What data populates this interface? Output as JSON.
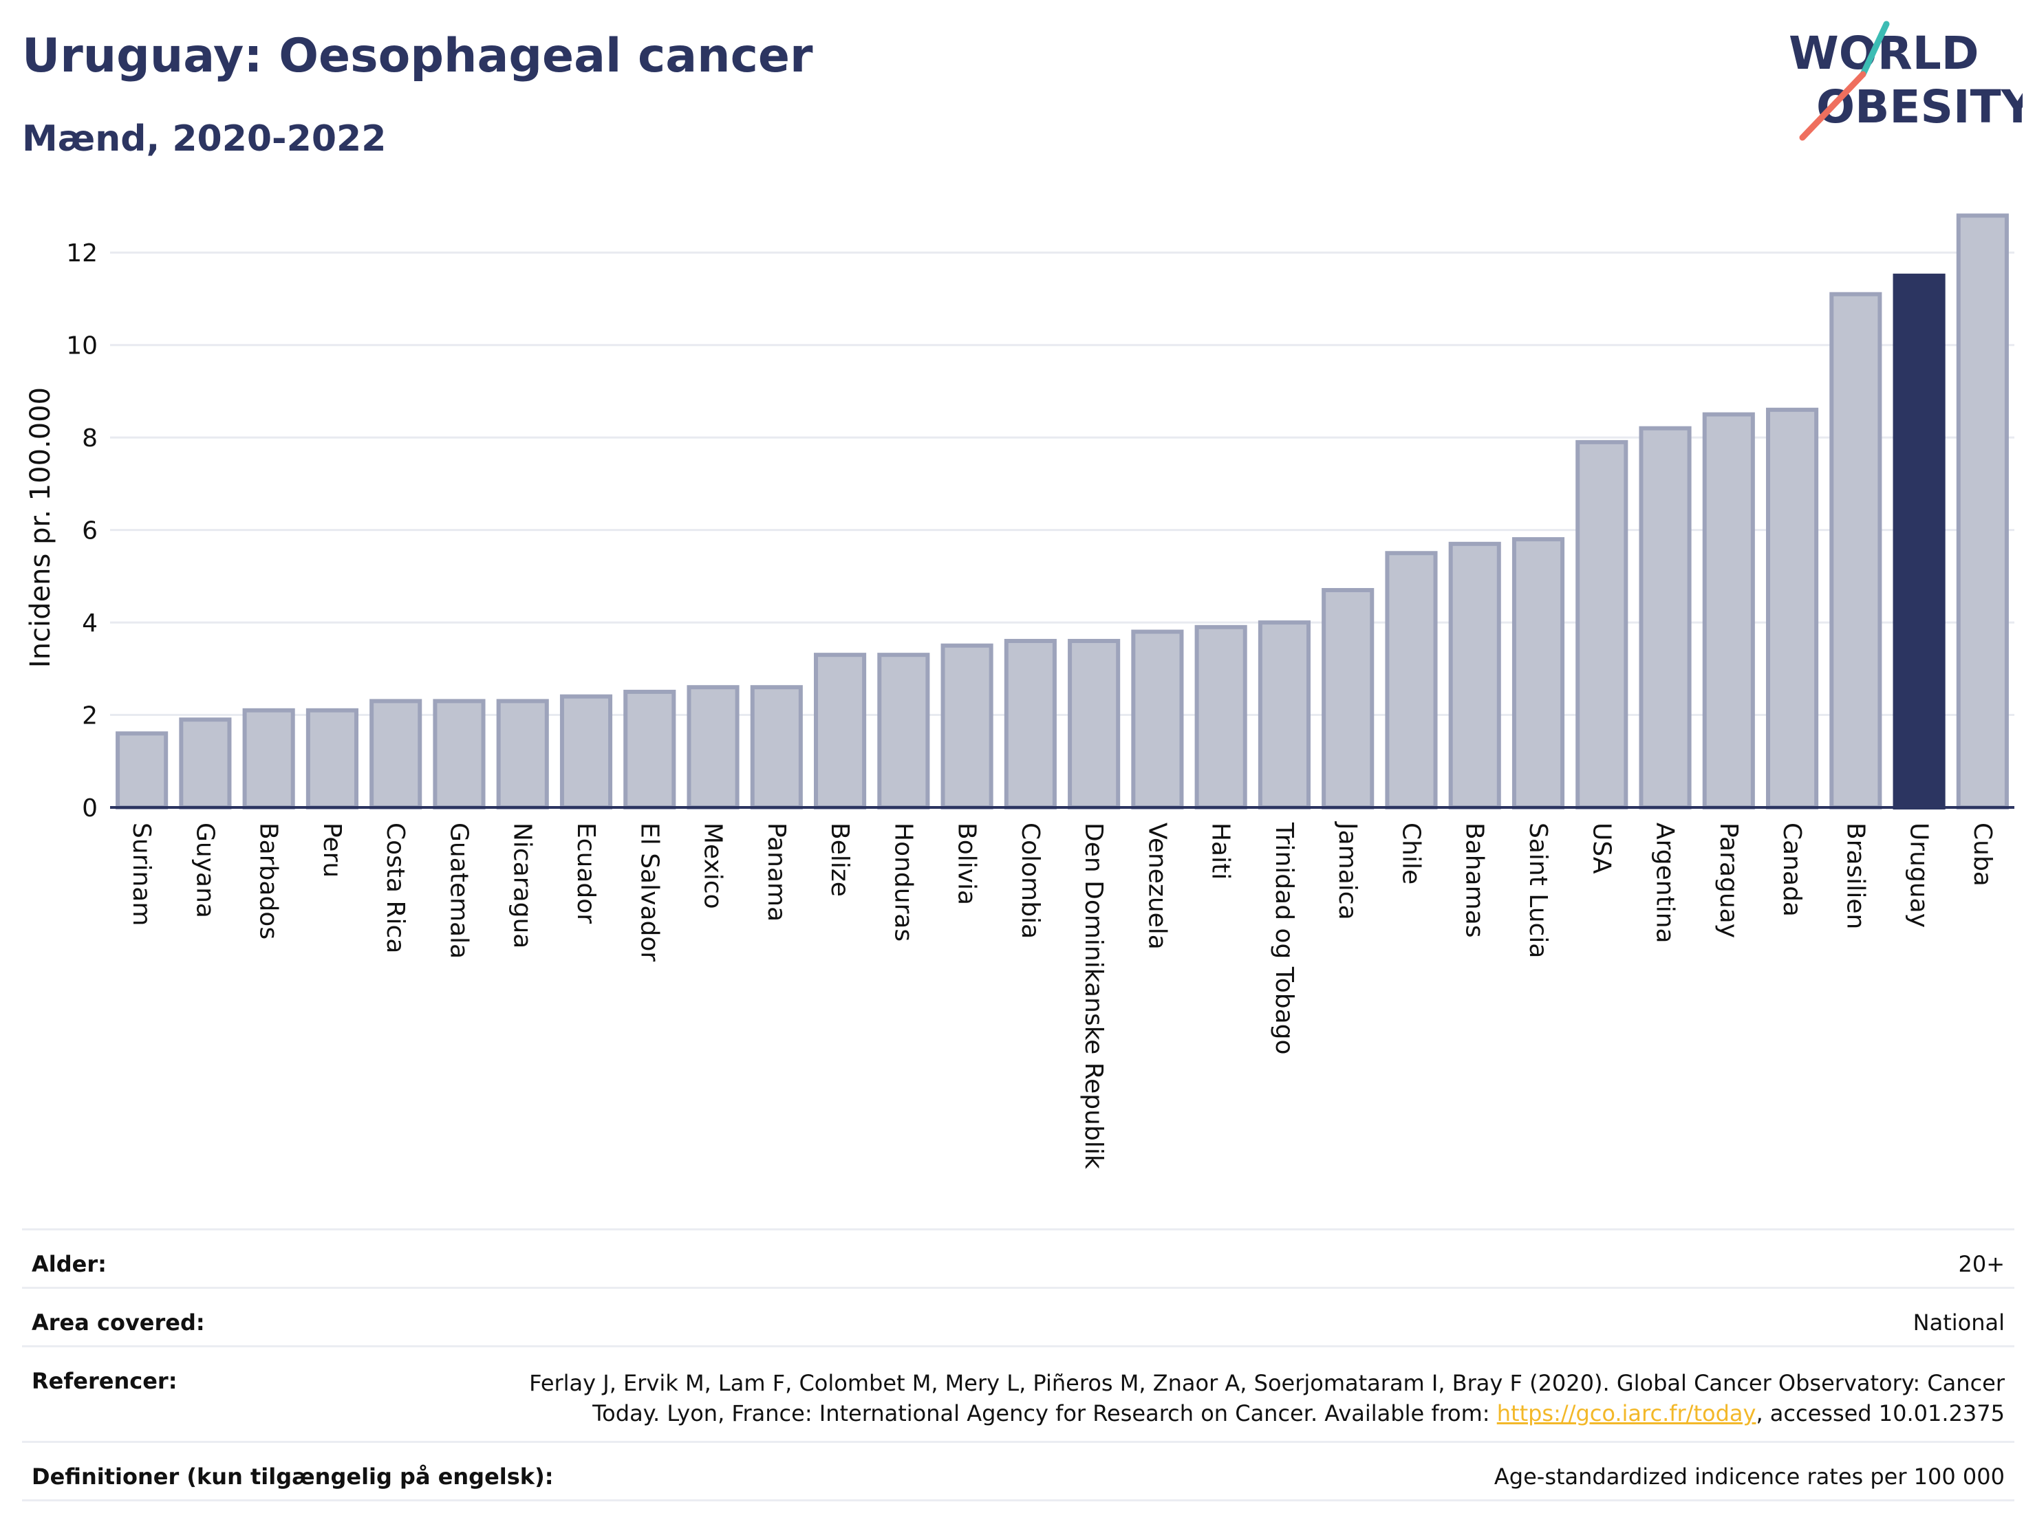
{
  "header": {
    "title": "Uruguay: Oesophageal cancer",
    "subtitle": "Mænd, 2020-2022"
  },
  "logo": {
    "line1": "WORLD",
    "line2": "OBESITY"
  },
  "chart_data": {
    "type": "bar",
    "title": "Uruguay: Oesophageal cancer",
    "subtitle": "Mænd, 2020-2022",
    "ylabel": "Incidens pr. 100.000",
    "xlabel": "",
    "ylim": [
      0,
      13
    ],
    "yticks": [
      0,
      2,
      4,
      6,
      8,
      10,
      12
    ],
    "grid": true,
    "categories": [
      "Surinam",
      "Guyana",
      "Barbados",
      "Peru",
      "Costa Rica",
      "Guatemala",
      "Nicaragua",
      "Ecuador",
      "El Salvador",
      "Mexico",
      "Panama",
      "Belize",
      "Honduras",
      "Bolivia",
      "Colombia",
      "Den Dominikanske Republik",
      "Venezuela",
      "Haiti",
      "Trinidad og Tobago",
      "Jamaica",
      "Chile",
      "Bahamas",
      "Saint Lucia",
      "USA",
      "Argentina",
      "Paraguay",
      "Canada",
      "Brasilien",
      "Uruguay",
      "Cuba"
    ],
    "values": [
      1.6,
      1.9,
      2.1,
      2.1,
      2.3,
      2.3,
      2.3,
      2.4,
      2.5,
      2.6,
      2.6,
      3.3,
      3.3,
      3.5,
      3.6,
      3.6,
      3.8,
      3.9,
      4.0,
      4.7,
      5.5,
      5.7,
      5.8,
      7.9,
      8.2,
      8.5,
      8.6,
      11.1,
      11.5,
      12.8
    ],
    "highlight": "Uruguay",
    "colors": {
      "bar": "#bfc3d0",
      "bar_edge": "#9da3bb",
      "highlight": "#2c3561",
      "grid": "#e8eaf0",
      "axis": "#2c3561"
    }
  },
  "info": {
    "age_label": "Alder:",
    "age_value": "20+",
    "area_label": "Area covered:",
    "area_value": "National",
    "ref_label": "Referencer:",
    "ref_line1": "Ferlay J, Ervik M, Lam F, Colombet M, Mery L, Piñeros M, Znaor A, Soerjomataram I, Bray F (2020). Global Cancer Observatory: Cancer",
    "ref_line2_pre": "Today. Lyon, France: International Agency for Research on Cancer. Available from: ",
    "ref_link": "https://gco.iarc.fr/today",
    "ref_line2_post": ", accessed 10.01.2375",
    "def_label": "Definitioner (kun tilgængelig på engelsk):",
    "def_value": "Age-standardized indicence rates per 100 000"
  }
}
